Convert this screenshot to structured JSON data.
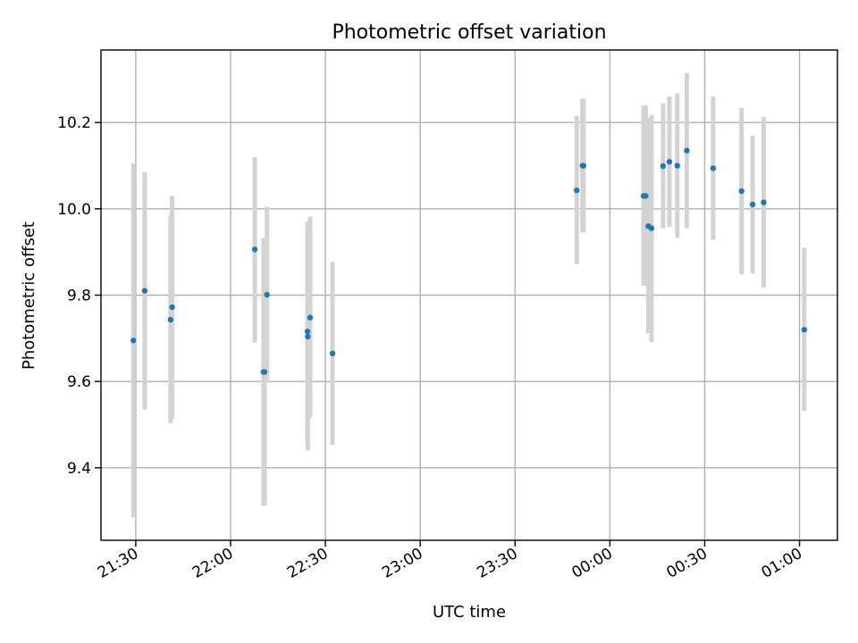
{
  "chart_data": {
    "type": "scatter",
    "title": "Photometric offset variation",
    "xlabel": "UTC time",
    "ylabel": "Photometric offset",
    "grid": true,
    "x_axis": {
      "kind": "time",
      "range": [
        "21:19",
        "01:12"
      ],
      "ticks": [
        "21:30",
        "22:00",
        "22:30",
        "23:00",
        "23:30",
        "00:00",
        "00:30",
        "01:00"
      ]
    },
    "y_axis": {
      "range": [
        9.232,
        10.368
      ],
      "ticks": [
        9.4,
        9.6,
        9.8,
        10.0,
        10.2
      ],
      "tick_labels": [
        "9.4",
        "9.6",
        "9.8",
        "10.0",
        "10.2"
      ]
    },
    "point_color": "#1f77b4",
    "errorbar_color": "#d3d3d3",
    "series": [
      {
        "points": [
          {
            "x": "21:29:15",
            "y": 9.695,
            "low": 9.285,
            "high": 10.105
          },
          {
            "x": "21:32:50",
            "y": 9.81,
            "low": 9.535,
            "high": 10.085
          },
          {
            "x": "21:41:00",
            "y": 9.743,
            "low": 9.503,
            "high": 9.985
          },
          {
            "x": "21:41:30",
            "y": 9.772,
            "low": 9.513,
            "high": 10.03
          },
          {
            "x": "22:07:40",
            "y": 9.906,
            "low": 9.69,
            "high": 10.12
          },
          {
            "x": "22:10:25",
            "y": 9.622,
            "low": 9.312,
            "high": 9.932
          },
          {
            "x": "22:10:45",
            "y": 9.622,
            "low": 9.312,
            "high": 9.932
          },
          {
            "x": "22:11:30",
            "y": 9.801,
            "low": 9.6,
            "high": 10.005
          },
          {
            "x": "22:24:20",
            "y": 9.716,
            "low": 9.46,
            "high": 9.97
          },
          {
            "x": "22:24:25",
            "y": 9.704,
            "low": 9.44,
            "high": 9.968
          },
          {
            "x": "22:25:10",
            "y": 9.748,
            "low": 9.515,
            "high": 9.982
          },
          {
            "x": "22:32:15",
            "y": 9.665,
            "low": 9.453,
            "high": 9.877
          },
          {
            "x": "23:49:30",
            "y": 10.043,
            "low": 9.872,
            "high": 10.215
          },
          {
            "x": "23:51:20",
            "y": 10.1,
            "low": 9.945,
            "high": 10.255
          },
          {
            "x": "23:51:40",
            "y": 10.1,
            "low": 9.945,
            "high": 10.255
          },
          {
            "x": "00:10:40",
            "y": 10.03,
            "low": 9.822,
            "high": 10.24
          },
          {
            "x": "00:11:20",
            "y": 10.03,
            "low": 9.822,
            "high": 10.24
          },
          {
            "x": "00:12:10",
            "y": 9.96,
            "low": 9.712,
            "high": 10.21
          },
          {
            "x": "00:13:10",
            "y": 9.955,
            "low": 9.692,
            "high": 10.218
          },
          {
            "x": "00:16:50",
            "y": 10.099,
            "low": 9.955,
            "high": 10.245
          },
          {
            "x": "00:18:50",
            "y": 10.109,
            "low": 9.958,
            "high": 10.26
          },
          {
            "x": "00:21:20",
            "y": 10.1,
            "low": 9.932,
            "high": 10.268
          },
          {
            "x": "00:24:20",
            "y": 10.135,
            "low": 9.955,
            "high": 10.315
          },
          {
            "x": "00:32:40",
            "y": 10.094,
            "low": 9.928,
            "high": 10.26
          },
          {
            "x": "00:41:40",
            "y": 10.041,
            "low": 9.848,
            "high": 10.234
          },
          {
            "x": "00:45:10",
            "y": 10.01,
            "low": 9.85,
            "high": 10.17
          },
          {
            "x": "00:48:40",
            "y": 10.015,
            "low": 9.817,
            "high": 10.213
          },
          {
            "x": "01:01:30",
            "y": 9.72,
            "low": 9.532,
            "high": 9.91
          }
        ]
      }
    ]
  }
}
